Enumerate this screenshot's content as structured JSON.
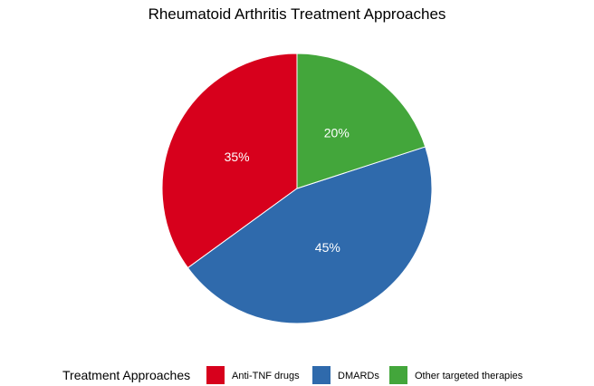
{
  "chart_data": {
    "type": "pie",
    "title": "Rheumatoid Arthritis Treatment Approaches",
    "legend_title": "Treatment Approaches",
    "legend_position": "bottom",
    "categories": [
      "Anti-TNF drugs",
      "DMARDs",
      "Other targeted therapies"
    ],
    "values": [
      35,
      45,
      20
    ],
    "labels": [
      "35%",
      "45%",
      "20%"
    ],
    "colors": [
      "#D7001C",
      "#2F6AAC",
      "#43A63B"
    ]
  }
}
